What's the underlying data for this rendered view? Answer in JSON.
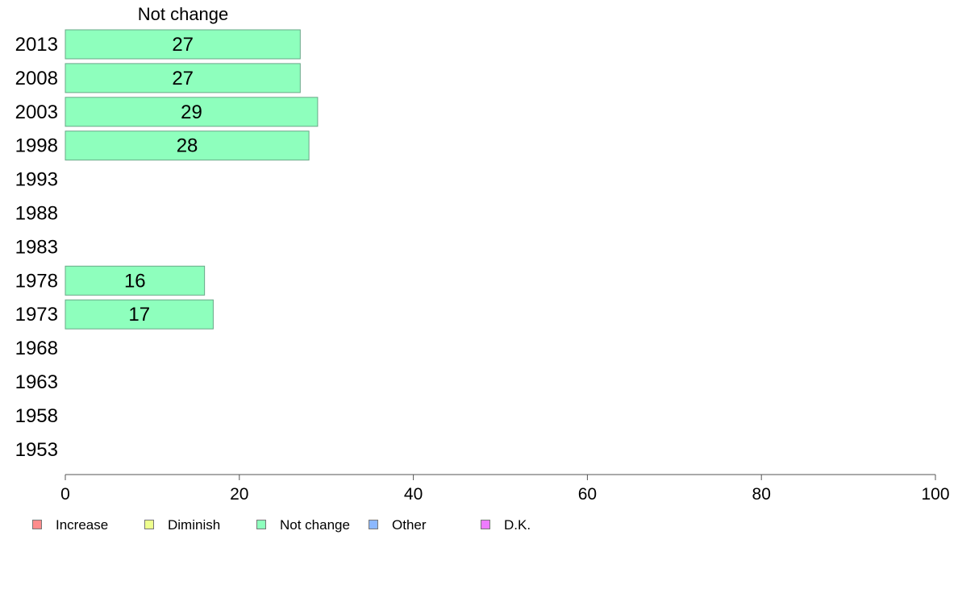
{
  "chart_data": {
    "type": "bar",
    "orientation": "horizontal",
    "title": "Not change",
    "categories": [
      "2013",
      "2008",
      "2003",
      "1998",
      "1993",
      "1988",
      "1983",
      "1978",
      "1973",
      "1968",
      "1963",
      "1958",
      "1953"
    ],
    "series": [
      {
        "name": "Not change",
        "color": "#8effbd",
        "values": [
          27,
          27,
          29,
          28,
          null,
          null,
          null,
          16,
          17,
          null,
          null,
          null,
          null
        ],
        "labels": [
          "27",
          "27",
          "29",
          "28",
          "",
          "",
          "",
          "16",
          "17",
          "",
          "",
          "",
          ""
        ]
      }
    ],
    "xlim": [
      0,
      100
    ],
    "xticks": [
      "0",
      "20",
      "40",
      "60",
      "80",
      "100"
    ],
    "xtick_values": [
      0,
      20,
      40,
      60,
      80,
      100
    ],
    "grid": false,
    "legend_placement": "bottom-left",
    "legend": [
      {
        "label": "Increase",
        "color": "#ff8c8c"
      },
      {
        "label": "Diminish",
        "color": "#eeff8e"
      },
      {
        "label": "Not change",
        "color": "#8effbd"
      },
      {
        "label": "Other",
        "color": "#8cb8ff"
      },
      {
        "label": "D.K.",
        "color": "#ee7cff"
      }
    ]
  }
}
